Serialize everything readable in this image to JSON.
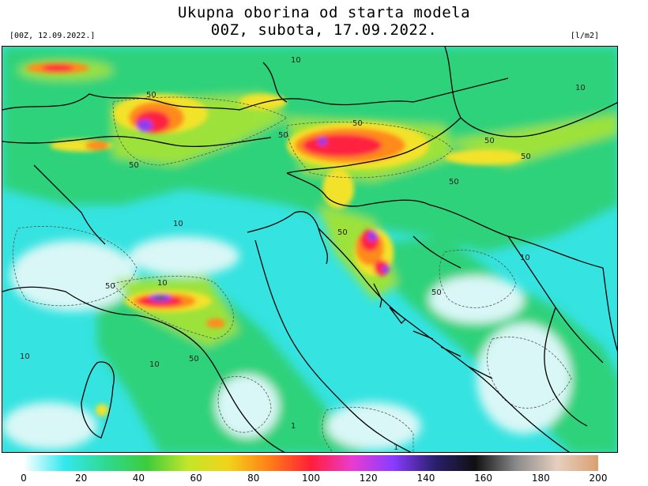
{
  "header": {
    "title_line1": "Ukupna oborina od starta modela",
    "title_line2": "00Z, subota, 17.09.2022.",
    "run_label": "[00Z, 12.09.2022.]",
    "unit_label": "[l/m2]"
  },
  "map": {
    "contour_labels": [
      "10",
      "50",
      "1"
    ]
  },
  "colorbar": {
    "ticks": [
      "0",
      "20",
      "40",
      "60",
      "80",
      "100",
      "120",
      "140",
      "160",
      "180",
      "200"
    ],
    "stops": [
      "#ffffff",
      "#33e8ee",
      "#30d990",
      "#3ccc3c",
      "#c2e62a",
      "#f2d21a",
      "#ff7d18",
      "#ff1e38",
      "#e83cd0",
      "#8a3cff",
      "#2a2070",
      "#101010",
      "#8a8a8a",
      "#e6cfc0",
      "#d9a070"
    ]
  },
  "colors": {
    "low": "#d9f7f6",
    "cyan": "#35e3e0",
    "green": "#2fd27a",
    "lime": "#9de23a",
    "yellow": "#f3e22a",
    "orange": "#ff8a1e",
    "red": "#ff2040",
    "purple": "#8c3cf0"
  }
}
